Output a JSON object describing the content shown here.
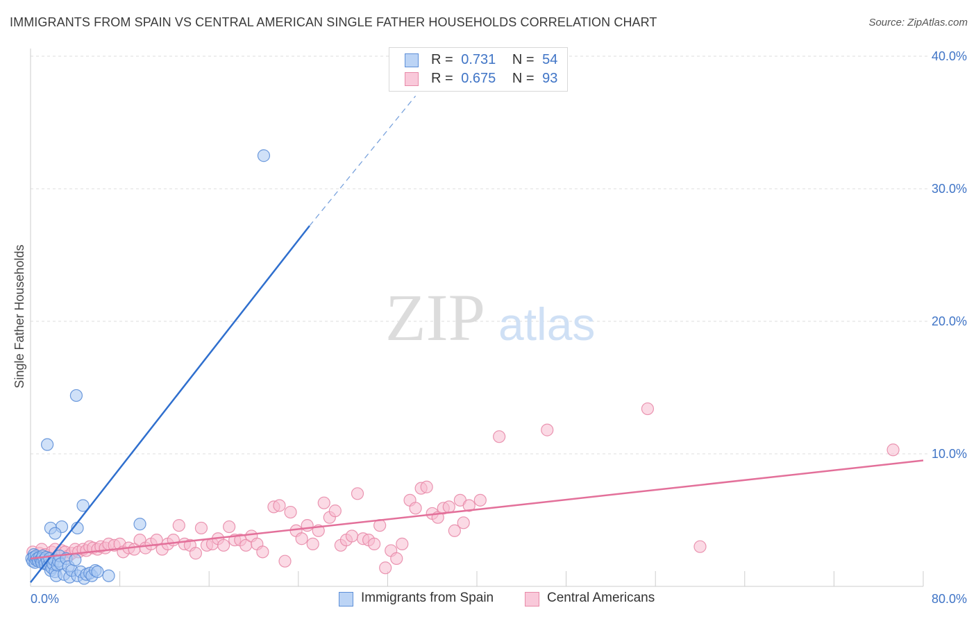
{
  "title": "IMMIGRANTS FROM SPAIN VS CENTRAL AMERICAN SINGLE FATHER HOUSEHOLDS CORRELATION CHART",
  "source": "Source: ZipAtlas.com",
  "watermark": {
    "part1": "ZIP",
    "part2": "atlas"
  },
  "colors": {
    "blue_fill": "#aac8f2",
    "blue_edge": "#5d8fd8",
    "blue_line": "#2f6fce",
    "pink_fill": "#f7bcd0",
    "pink_edge": "#e88aa8",
    "pink_line": "#e3709a",
    "tick": "#3f74c6",
    "grid": "#dcdcdc"
  },
  "legend": {
    "r_label": "R =",
    "n_label": "N =",
    "rows": [
      {
        "r": "0.731",
        "n": "54"
      },
      {
        "r": "0.675",
        "n": "93"
      }
    ]
  },
  "bottom_legend": [
    "Immigrants from Spain",
    "Central Americans"
  ],
  "chart_data": {
    "type": "scatter",
    "title": "IMMIGRANTS FROM SPAIN VS CENTRAL AMERICAN SINGLE FATHER HOUSEHOLDS CORRELATION CHART",
    "xlabel": "",
    "ylabel": "Single Father Households",
    "xlim": [
      0,
      80
    ],
    "ylim": [
      0,
      42
    ],
    "x_tick_labels": [
      "0.0%",
      "80.0%"
    ],
    "y_ticks": [
      10,
      20,
      30,
      40
    ],
    "y_tick_labels": [
      "10.0%",
      "20.0%",
      "30.0%",
      "40.0%"
    ],
    "grid": true,
    "legend_position": "top-center",
    "series": [
      {
        "name": "Immigrants from Spain",
        "r": 0.731,
        "n": 54,
        "trend": {
          "x0": 0.0,
          "y0": 0.3,
          "x1": 25.0,
          "y1": 27.2,
          "dash_to_x": 34.5,
          "dash_to_y": 37.0
        },
        "points": [
          [
            0.1,
            2.1
          ],
          [
            0.2,
            1.9
          ],
          [
            0.3,
            2.4
          ],
          [
            0.3,
            2.2
          ],
          [
            0.4,
            1.8
          ],
          [
            0.5,
            2.0
          ],
          [
            0.5,
            2.3
          ],
          [
            0.6,
            2.1
          ],
          [
            0.7,
            1.9
          ],
          [
            0.8,
            2.2
          ],
          [
            0.9,
            2.0
          ],
          [
            1.0,
            2.1
          ],
          [
            1.0,
            1.8
          ],
          [
            1.1,
            2.3
          ],
          [
            1.2,
            2.0
          ],
          [
            1.3,
            1.7
          ],
          [
            1.4,
            2.2
          ],
          [
            1.5,
            1.9
          ],
          [
            1.6,
            1.6
          ],
          [
            1.7,
            2.1
          ],
          [
            1.8,
            1.2
          ],
          [
            1.9,
            1.4
          ],
          [
            2.0,
            1.7
          ],
          [
            2.1,
            2.0
          ],
          [
            2.2,
            1.1
          ],
          [
            2.3,
            0.8
          ],
          [
            2.4,
            1.6
          ],
          [
            2.5,
            1.9
          ],
          [
            2.6,
            2.3
          ],
          [
            2.7,
            1.7
          ],
          [
            3.0,
            0.9
          ],
          [
            3.2,
            2.1
          ],
          [
            3.4,
            1.5
          ],
          [
            3.5,
            0.7
          ],
          [
            3.7,
            1.2
          ],
          [
            4.0,
            2.0
          ],
          [
            4.2,
            0.8
          ],
          [
            4.5,
            1.1
          ],
          [
            4.8,
            0.6
          ],
          [
            5.0,
            0.9
          ],
          [
            5.3,
            1.0
          ],
          [
            5.5,
            0.8
          ],
          [
            5.8,
            1.2
          ],
          [
            6.0,
            1.1
          ],
          [
            7.0,
            0.8
          ],
          [
            1.5,
            10.7
          ],
          [
            4.1,
            14.4
          ],
          [
            4.7,
            6.1
          ],
          [
            4.2,
            4.4
          ],
          [
            2.8,
            4.5
          ],
          [
            1.8,
            4.4
          ],
          [
            2.2,
            4.0
          ],
          [
            9.8,
            4.7
          ],
          [
            20.9,
            32.5
          ]
        ]
      },
      {
        "name": "Central Americans",
        "r": 0.675,
        "n": 93,
        "trend": {
          "x0": 0.0,
          "y0": 2.1,
          "x1": 80.0,
          "y1": 9.5
        },
        "points": [
          [
            0.2,
            2.6
          ],
          [
            0.5,
            2.2
          ],
          [
            0.8,
            2.5
          ],
          [
            1.0,
            2.8
          ],
          [
            1.3,
            2.4
          ],
          [
            1.6,
            2.2
          ],
          [
            1.9,
            2.6
          ],
          [
            2.2,
            2.8
          ],
          [
            2.5,
            2.3
          ],
          [
            2.8,
            2.7
          ],
          [
            3.1,
            2.6
          ],
          [
            3.4,
            2.3
          ],
          [
            3.7,
            2.5
          ],
          [
            4.0,
            2.8
          ],
          [
            4.3,
            2.6
          ],
          [
            4.7,
            2.8
          ],
          [
            5.0,
            2.7
          ],
          [
            5.3,
            3.0
          ],
          [
            5.6,
            2.9
          ],
          [
            6.0,
            2.8
          ],
          [
            6.3,
            3.0
          ],
          [
            6.7,
            2.9
          ],
          [
            7.0,
            3.2
          ],
          [
            7.5,
            3.1
          ],
          [
            8.0,
            3.2
          ],
          [
            8.3,
            2.6
          ],
          [
            8.8,
            2.9
          ],
          [
            9.3,
            2.8
          ],
          [
            9.8,
            3.5
          ],
          [
            10.3,
            2.9
          ],
          [
            10.8,
            3.2
          ],
          [
            11.3,
            3.5
          ],
          [
            11.8,
            2.8
          ],
          [
            12.3,
            3.2
          ],
          [
            12.8,
            3.5
          ],
          [
            13.3,
            4.6
          ],
          [
            13.8,
            3.2
          ],
          [
            14.3,
            3.1
          ],
          [
            14.8,
            2.5
          ],
          [
            15.3,
            4.4
          ],
          [
            15.8,
            3.1
          ],
          [
            16.3,
            3.2
          ],
          [
            16.8,
            3.6
          ],
          [
            17.3,
            3.1
          ],
          [
            17.8,
            4.5
          ],
          [
            18.3,
            3.5
          ],
          [
            18.8,
            3.5
          ],
          [
            19.3,
            3.1
          ],
          [
            19.8,
            3.8
          ],
          [
            20.3,
            3.2
          ],
          [
            20.8,
            2.6
          ],
          [
            21.8,
            6.0
          ],
          [
            22.3,
            6.1
          ],
          [
            22.8,
            1.9
          ],
          [
            23.3,
            5.6
          ],
          [
            23.8,
            4.2
          ],
          [
            24.3,
            3.6
          ],
          [
            24.8,
            4.6
          ],
          [
            25.3,
            3.2
          ],
          [
            25.8,
            4.2
          ],
          [
            26.3,
            6.3
          ],
          [
            26.8,
            5.2
          ],
          [
            27.3,
            5.7
          ],
          [
            27.8,
            3.1
          ],
          [
            28.3,
            3.5
          ],
          [
            28.8,
            3.8
          ],
          [
            29.3,
            7.0
          ],
          [
            29.8,
            3.6
          ],
          [
            30.3,
            3.5
          ],
          [
            30.8,
            3.2
          ],
          [
            31.3,
            4.6
          ],
          [
            31.8,
            1.4
          ],
          [
            32.3,
            2.7
          ],
          [
            32.8,
            2.1
          ],
          [
            33.3,
            3.2
          ],
          [
            34.0,
            6.5
          ],
          [
            34.5,
            5.9
          ],
          [
            35.0,
            7.4
          ],
          [
            35.5,
            7.5
          ],
          [
            36.0,
            5.5
          ],
          [
            36.5,
            5.2
          ],
          [
            37.0,
            5.9
          ],
          [
            37.5,
            6.0
          ],
          [
            38.0,
            4.2
          ],
          [
            38.5,
            6.5
          ],
          [
            38.8,
            4.8
          ],
          [
            39.3,
            6.1
          ],
          [
            40.3,
            6.5
          ],
          [
            42.0,
            11.3
          ],
          [
            46.3,
            11.8
          ],
          [
            55.3,
            13.4
          ],
          [
            77.3,
            10.3
          ],
          [
            60.0,
            3.0
          ]
        ]
      }
    ]
  }
}
